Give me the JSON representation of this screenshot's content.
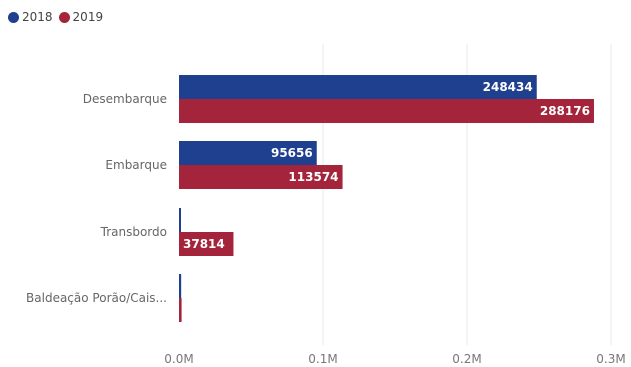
{
  "chart_data": {
    "type": "bar",
    "orientation": "horizontal",
    "categories": [
      "Desembarque",
      "Embarque",
      "Transbordo",
      "Baldeação Porão/Cais..."
    ],
    "series": [
      {
        "name": "2018",
        "color": "#1f3f8f",
        "values": [
          248434,
          95656,
          1200,
          1500
        ],
        "labels": [
          "248434",
          "95656",
          "",
          ""
        ]
      },
      {
        "name": "2019",
        "color": "#a3243b",
        "values": [
          288176,
          113574,
          37814,
          1800
        ],
        "labels": [
          "288176",
          "113574",
          "37814",
          ""
        ]
      }
    ],
    "xticks": [
      "0.0M",
      "0.1M",
      "0.2M",
      "0.3M"
    ],
    "xlim": [
      0,
      300000
    ],
    "grid": true,
    "legend": "top-left"
  }
}
